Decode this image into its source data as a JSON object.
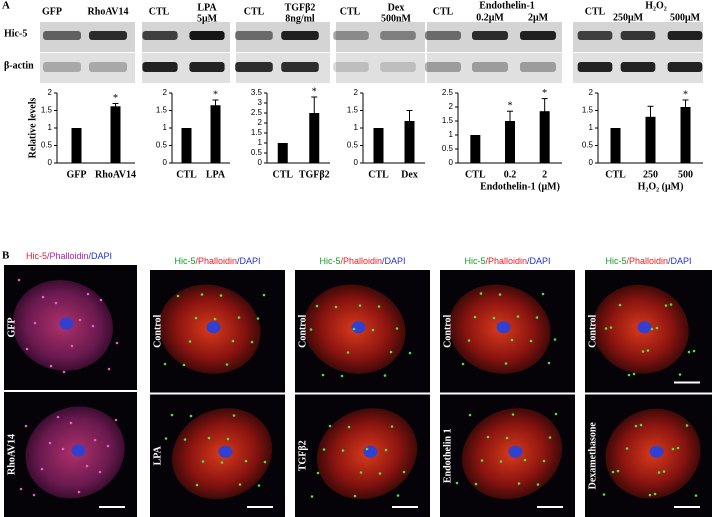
{
  "panel_labels": [
    "A",
    "B"
  ],
  "blots": {
    "row_labels": [
      "Hic-5",
      "β-actin"
    ],
    "panels": [
      {
        "headers": [
          "GFP",
          "RhoAV14"
        ]
      },
      {
        "headers": [
          "CTL",
          "LPA",
          "5μM"
        ]
      },
      {
        "headers": [
          "CTL",
          "TGFβ2",
          "8ng/ml"
        ]
      },
      {
        "headers": [
          "CTL",
          "Dex",
          "500nM"
        ]
      },
      {
        "headers": [
          "CTL",
          "Endothelin-1",
          "0.2μM",
          "2μM"
        ]
      },
      {
        "headers": [
          "CTL",
          "H₂O₂",
          "250μM",
          "500μM"
        ]
      }
    ]
  },
  "chart_data": [
    {
      "type": "bar",
      "y_label": "Relative levels",
      "categories": [
        "GFP",
        "RhoAV14"
      ],
      "values": [
        1,
        1.62
      ],
      "errors": [
        0,
        0.08
      ],
      "annotations": [
        null,
        "*"
      ],
      "color": "#000000",
      "ylim": [
        0,
        2
      ],
      "yticks": [
        0,
        0.5,
        1,
        1.5,
        2
      ]
    },
    {
      "type": "bar",
      "categories": [
        "CTL",
        "LPA"
      ],
      "values": [
        1,
        1.65
      ],
      "errors": [
        0,
        0.15
      ],
      "annotations": [
        null,
        "*"
      ],
      "color": "#000000",
      "ylim": [
        0,
        2
      ],
      "yticks": [
        0,
        0.5,
        1,
        1.5,
        2
      ]
    },
    {
      "type": "bar",
      "categories": [
        "CTL",
        "TGFβ2"
      ],
      "values": [
        1,
        2.5
      ],
      "errors": [
        0,
        0.8
      ],
      "annotations": [
        null,
        "*"
      ],
      "color": "#000000",
      "ylim": [
        0,
        3.5
      ],
      "yticks": [
        0,
        0.5,
        1,
        1.5,
        2,
        2.5,
        3,
        3.5
      ]
    },
    {
      "type": "bar",
      "categories": [
        "CTL",
        "Dex"
      ],
      "values": [
        1,
        1.2
      ],
      "errors": [
        0,
        0.3
      ],
      "color": "#000000",
      "ylim": [
        0,
        2
      ],
      "yticks": [
        0,
        0.5,
        1,
        1.5,
        2
      ]
    },
    {
      "type": "bar",
      "x_label": "Endothelin-1 (μM)",
      "categories": [
        "CTL",
        "0.2",
        "2"
      ],
      "values": [
        1,
        1.5,
        1.85
      ],
      "errors": [
        0,
        0.35,
        0.45
      ],
      "annotations": [
        null,
        "*",
        "*"
      ],
      "color": "#000000",
      "ylim": [
        0,
        2.5
      ],
      "yticks": [
        0,
        0.5,
        1,
        1.5,
        2,
        2.5
      ]
    },
    {
      "type": "bar",
      "x_label": "H₂O₂ (μM)",
      "categories": [
        "CTL",
        "250",
        "500"
      ],
      "values": [
        1,
        1.32,
        1.6
      ],
      "errors": [
        0,
        0.3,
        0.2
      ],
      "annotations": [
        null,
        null,
        "*"
      ],
      "color": "#000000",
      "ylim": [
        0,
        2
      ],
      "yticks": [
        0,
        0.5,
        1,
        1.5,
        2
      ]
    }
  ],
  "panel_b": {
    "columns": [
      {
        "header": [
          "Hic-5",
          "/Phalloidin",
          "/DAPI"
        ],
        "rows": [
          "GFP",
          "RhoAV14"
        ]
      },
      {
        "header": [
          "Hic-5",
          "/Phalloidin",
          "/DAPI"
        ],
        "rows": [
          "Control",
          "LPA"
        ]
      },
      {
        "header": [
          "Hic-5",
          "/Phalloidin",
          "/DAPI"
        ],
        "rows": [
          "Control",
          "TGFβ2"
        ]
      },
      {
        "header": [
          "Hic-5",
          "/Phalloidin",
          "/DAPI"
        ],
        "rows": [
          "Control",
          "Endothelin 1"
        ]
      },
      {
        "header": [
          "Hic-5",
          "/Phalloidin",
          "/DAPI"
        ],
        "rows": [
          "Control",
          "Dexamethasone"
        ]
      }
    ]
  }
}
